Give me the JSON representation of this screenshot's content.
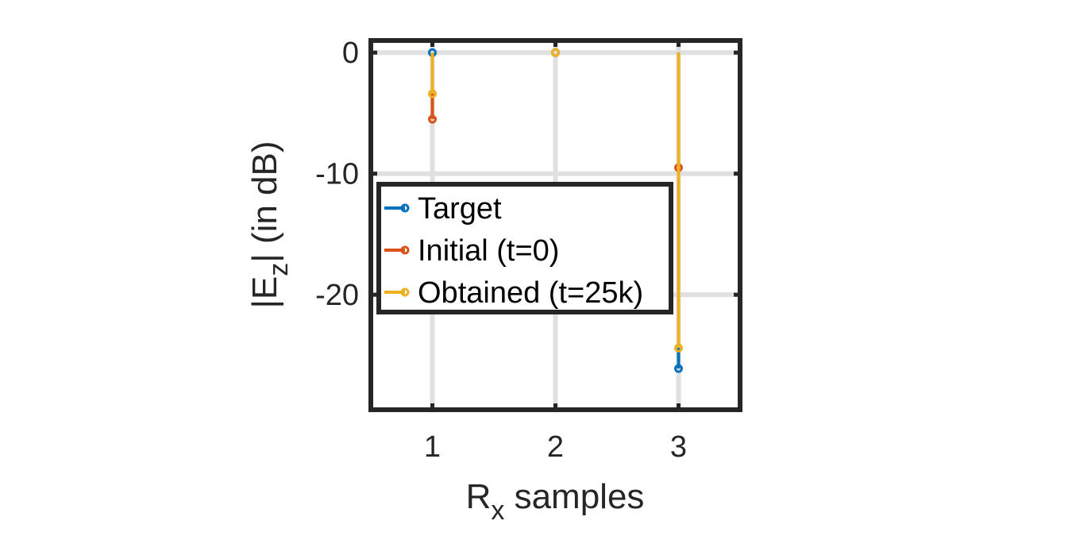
{
  "chart_data": {
    "type": "stem",
    "xlabel": {
      "main": "R",
      "sub": "x",
      "rest": " samples"
    },
    "ylabel": {
      "pre": "|E",
      "sub": "z",
      "post": "| (in dB)"
    },
    "xlim": [
      0.5,
      3.5
    ],
    "ylim": [
      -29.5,
      1
    ],
    "xticks": [
      1,
      2,
      3
    ],
    "xtick_labels": [
      "1",
      "2",
      "3"
    ],
    "yticks": [
      -20,
      -10,
      0
    ],
    "ytick_labels": [
      "-20",
      "-10",
      "0"
    ],
    "grid": true,
    "legend_position": "center-left",
    "series": [
      {
        "name": "Target",
        "color": "#0072BD",
        "x": [
          1,
          2,
          3
        ],
        "y": [
          0,
          0,
          -26.1
        ]
      },
      {
        "name": "Initial (t=0)",
        "color": "#D95319",
        "x": [
          1,
          2,
          3
        ],
        "y": [
          -5.5,
          0,
          -9.5
        ]
      },
      {
        "name": "Obtained (t=25k)",
        "color": "#EDB120",
        "x": [
          1,
          2,
          3
        ],
        "y": [
          -3.4,
          0,
          -24.4
        ]
      }
    ]
  }
}
